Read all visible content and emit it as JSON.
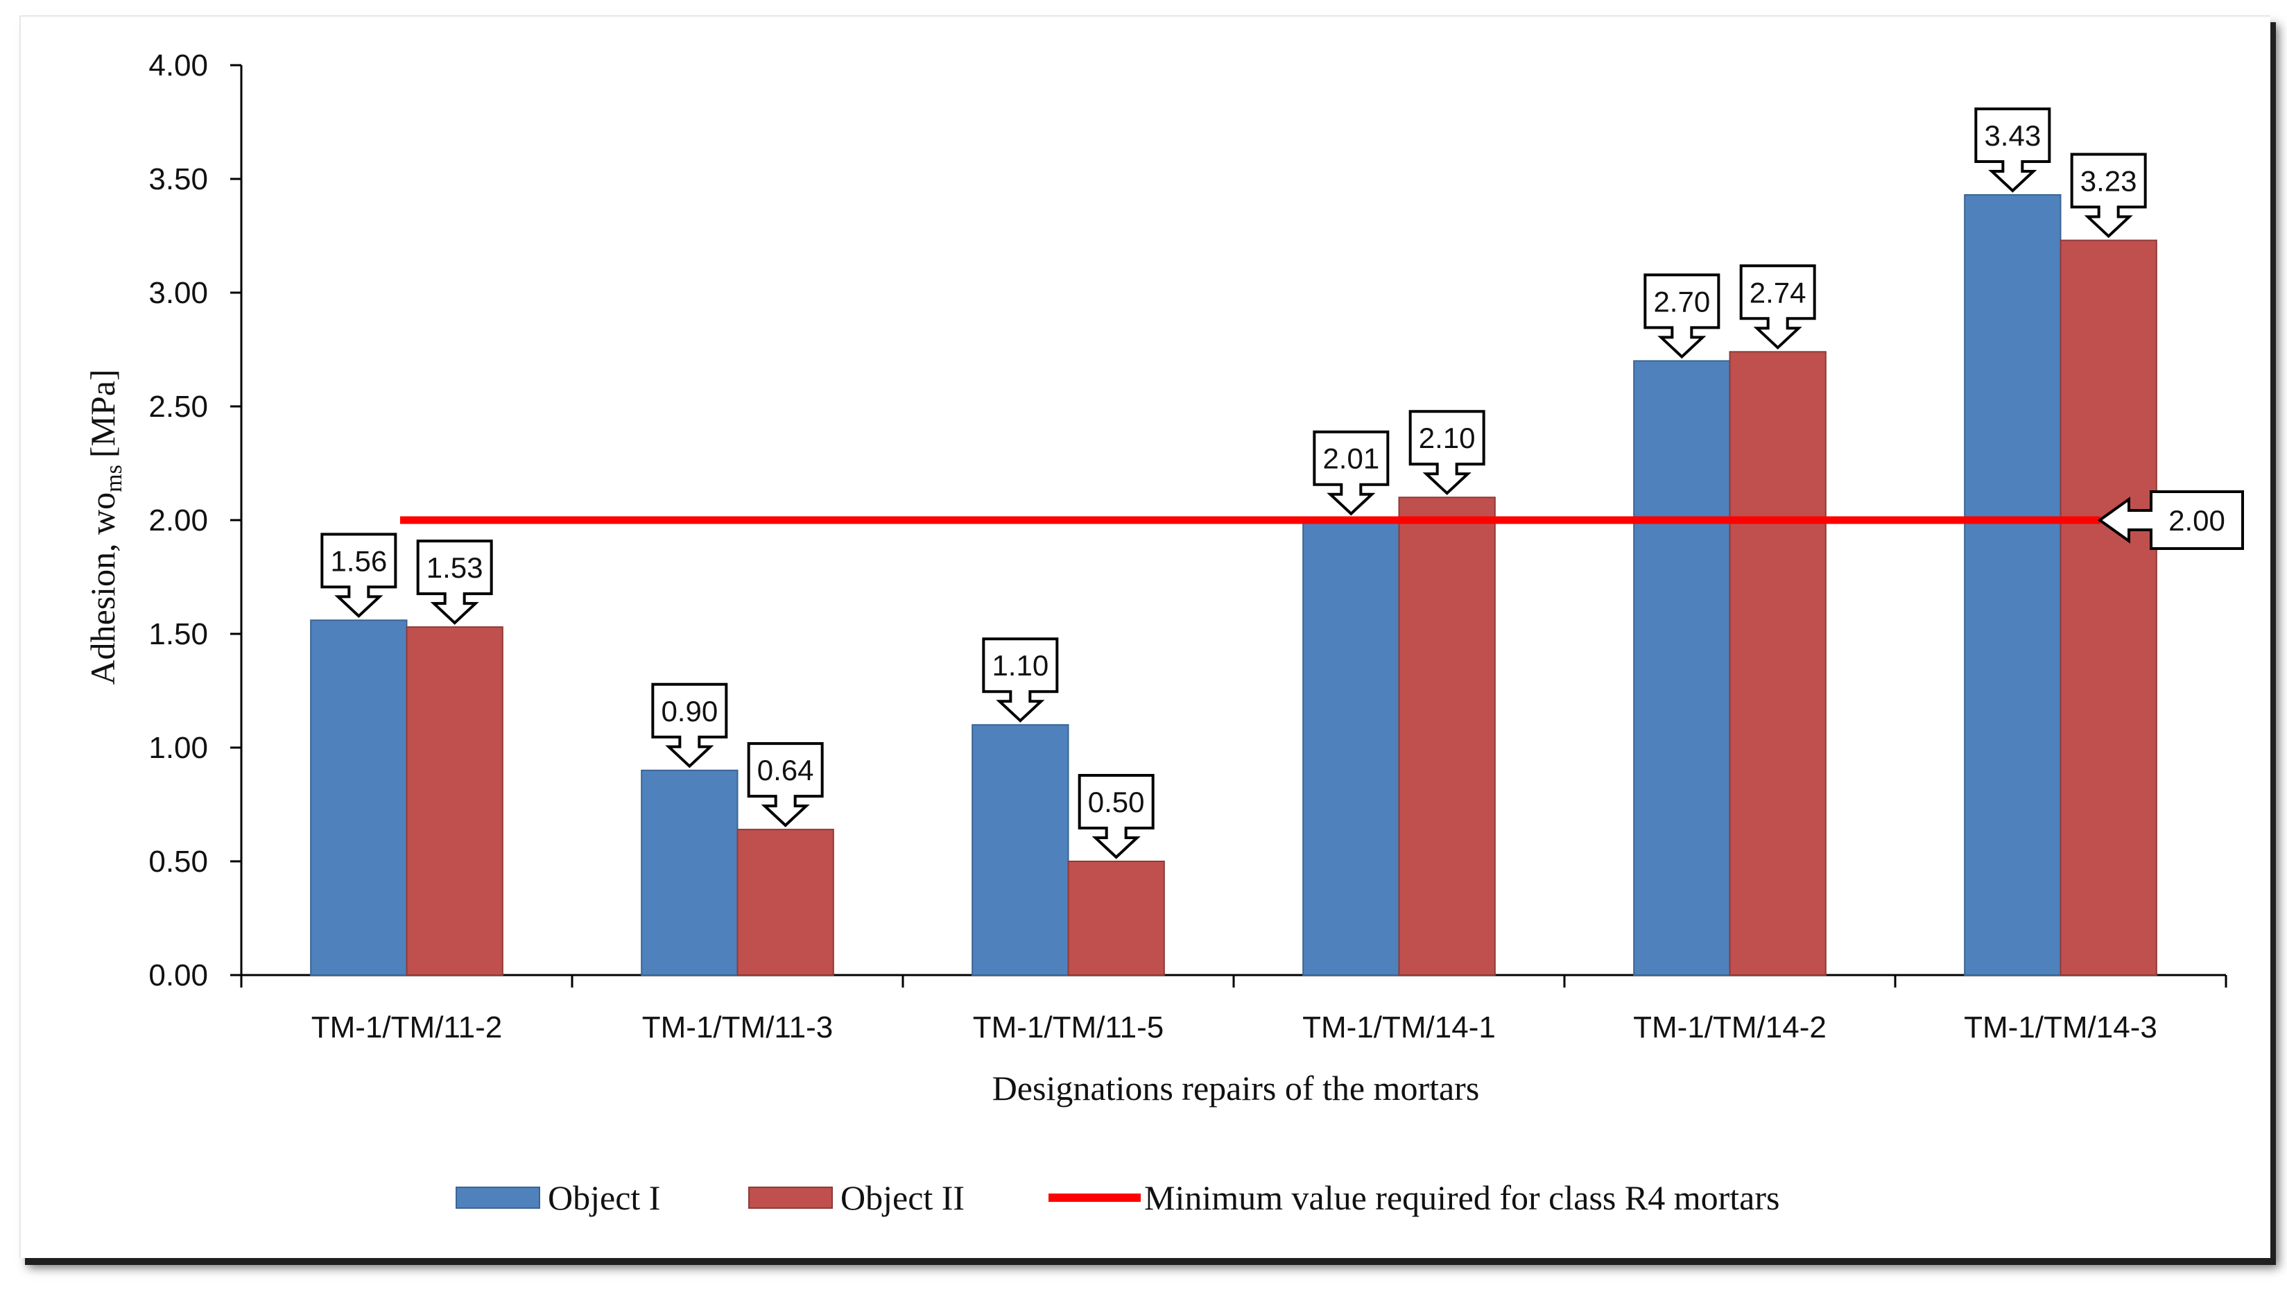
{
  "chart_data": {
    "type": "bar",
    "categories": [
      "TM-1/TM/11-2",
      "TM-1/TM/11-3",
      "TM-1/TM/11-5",
      "TM-1/TM/14-1",
      "TM-1/TM/14-2",
      "TM-1/TM/14-3"
    ],
    "series": [
      {
        "name": "Object I",
        "color": "#4f81bd",
        "values": [
          1.56,
          0.9,
          1.1,
          2.01,
          2.7,
          3.43
        ]
      },
      {
        "name": "Object II",
        "color": "#c0504d",
        "values": [
          1.53,
          0.64,
          0.5,
          2.1,
          2.74,
          3.23
        ]
      }
    ],
    "data_labels": {
      "Object I": [
        "1.56",
        "0.90",
        "1.10",
        "2.01",
        "2.70",
        "3.43"
      ],
      "Object II": [
        "1.53",
        "0.64",
        "0.50",
        "2.10",
        "2.74",
        "3.23"
      ]
    },
    "reference_line": {
      "name": "Minimum value required for class R4 mortars",
      "value": 2.0,
      "label": "2.00",
      "color": "#ff0000"
    },
    "ylabel": "Adhesion, wo",
    "ylabel_subscript": "ms",
    "ylabel_unit": "[MPa]",
    "xlabel": "Designations repairs of the  mortars",
    "ylim": [
      0,
      4
    ],
    "yticks": [
      "0.00",
      "0.50",
      "1.00",
      "1.50",
      "2.00",
      "2.50",
      "3.00",
      "3.50",
      "4.00"
    ],
    "legend_position": "bottom",
    "grid": false
  }
}
